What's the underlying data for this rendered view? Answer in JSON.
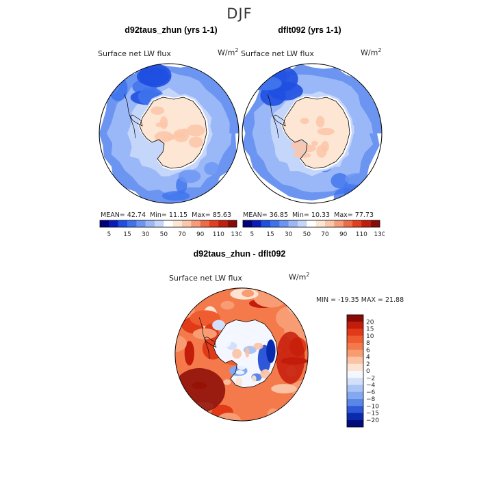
{
  "page": {
    "title": "DJF"
  },
  "chart_data": [
    {
      "type": "heatmap",
      "projection": "south-polar-stereographic",
      "title": "d92taus_zhun (yrs 1-1)",
      "variable": "Surface net LW flux",
      "units": "W/m",
      "units_exp": "2",
      "stats": {
        "mean_label": "MEAN=",
        "mean": "42.74",
        "min_label": "Min=",
        "min": "11.15",
        "max_label": "Max=",
        "max": "85.63"
      },
      "colorbar_levels": [
        "5",
        "15",
        "30",
        "50",
        "70",
        "90",
        "110",
        "130"
      ],
      "colorbar_colors": [
        "#00007f",
        "#0a1cb8",
        "#1f4fe0",
        "#3f73ec",
        "#6c95f2",
        "#9ab8f7",
        "#c5d6fb",
        "#ffffff",
        "#fde6d3",
        "#fcc6a8",
        "#f79c78",
        "#ef6c4b",
        "#e0401f",
        "#bf1f0c",
        "#8a0a05"
      ],
      "field": {
        "continent_range_wm2": [
          60,
          80
        ],
        "ocean_range_wm2": [
          15,
          50
        ]
      }
    },
    {
      "type": "heatmap",
      "projection": "south-polar-stereographic",
      "title": "dflt092 (yrs 1-1)",
      "variable": "Surface net LW flux",
      "units": "W/m",
      "units_exp": "2",
      "stats": {
        "mean_label": "MEAN=",
        "mean": "36.85",
        "min_label": "Min=",
        "min": "10.33",
        "max_label": "Max=",
        "max": "77.73"
      },
      "colorbar_levels": [
        "5",
        "15",
        "30",
        "50",
        "70",
        "90",
        "110",
        "130"
      ],
      "colorbar_colors": [
        "#00007f",
        "#0a1cb8",
        "#1f4fe0",
        "#3f73ec",
        "#6c95f2",
        "#9ab8f7",
        "#c5d6fb",
        "#ffffff",
        "#fde6d3",
        "#fcc6a8",
        "#f79c78",
        "#ef6c4b",
        "#e0401f",
        "#bf1f0c",
        "#8a0a05"
      ],
      "field": {
        "continent_range_wm2": [
          60,
          75
        ],
        "ocean_range_wm2": [
          10,
          45
        ]
      }
    },
    {
      "type": "heatmap",
      "projection": "south-polar-stereographic",
      "title": "d92taus_zhun - dflt092",
      "variable": "Surface net LW flux",
      "units": "W/m",
      "units_exp": "2",
      "stats_text": "MIN = -19.35 MAX =  21.88",
      "colorbar_levels": [
        "20",
        "15",
        "10",
        "8",
        "6",
        "4",
        "2",
        "0",
        "−2",
        "−4",
        "−6",
        "−8",
        "−10",
        "−15",
        "−20"
      ],
      "colorbar_colors": [
        "#8a0a05",
        "#c41c0a",
        "#e03a18",
        "#ef5c30",
        "#f47a4c",
        "#f89c74",
        "#fbc2a4",
        "#fde4d2",
        "#f4f7ff",
        "#d2e0fb",
        "#aac4f6",
        "#84a8f0",
        "#5a86e8",
        "#2e58d8",
        "#0a2aae",
        "#000c7a"
      ],
      "field": {
        "min": -19.35,
        "max": 21.88
      }
    }
  ]
}
